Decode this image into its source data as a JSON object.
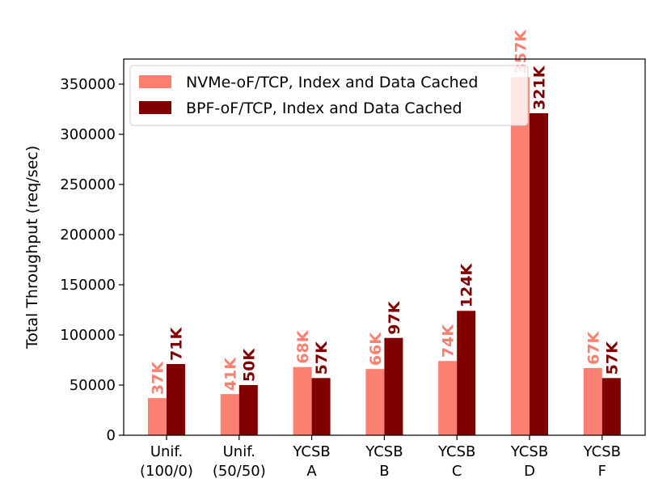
{
  "chart_data": {
    "type": "bar",
    "categories": [
      [
        "Unif.",
        "(100/0)"
      ],
      [
        "Unif.",
        "(50/50)"
      ],
      [
        "YCSB",
        "A"
      ],
      [
        "YCSB",
        "B"
      ],
      [
        "YCSB",
        "C"
      ],
      [
        "YCSB",
        "D"
      ],
      [
        "YCSB",
        "F"
      ]
    ],
    "series": [
      {
        "name": "NVMe-oF/TCP, Index and Data Cached",
        "color": "#fa8072",
        "values": [
          37000,
          41000,
          68000,
          66000,
          74000,
          357000,
          67000
        ],
        "labels": [
          "37K",
          "41K",
          "68K",
          "66K",
          "74K",
          "357K",
          "67K"
        ]
      },
      {
        "name": "BPF-oF/TCP, Index and Data Cached",
        "color": "#800000",
        "values": [
          71000,
          50000,
          57000,
          97000,
          124000,
          321000,
          57000
        ],
        "labels": [
          "71K",
          "50K",
          "57K",
          "97K",
          "124K",
          "321K",
          "57K"
        ]
      }
    ],
    "ylabel": "Total Throughput (req/sec)",
    "xlabel": "",
    "ylim": [
      0,
      375000
    ],
    "yticks": [
      0,
      50000,
      100000,
      150000,
      200000,
      250000,
      300000,
      350000
    ],
    "ytick_labels": [
      "0",
      "50000",
      "100000",
      "150000",
      "200000",
      "250000",
      "300000",
      "350000"
    ],
    "grid": false,
    "legend_position": "top-left"
  }
}
